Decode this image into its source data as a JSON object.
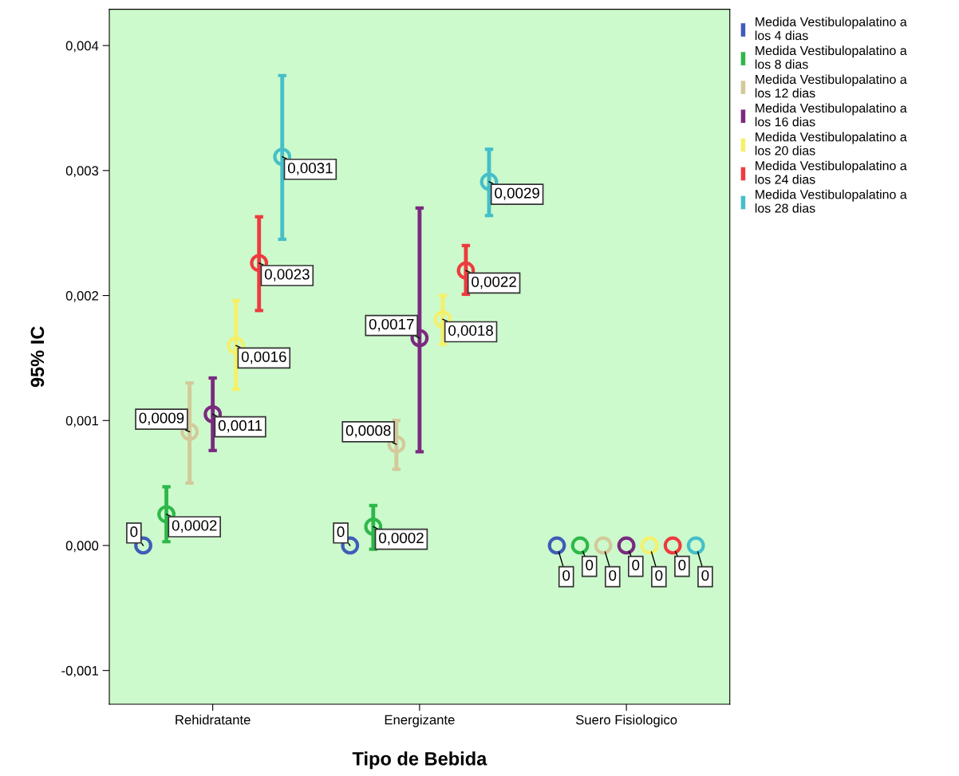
{
  "chart_data": {
    "type": "scatter",
    "xlabel": "Tipo de Bebida",
    "ylabel": "95% IC",
    "categories": [
      "Rehidratante",
      "Energizante",
      "Suero Fisiologico"
    ],
    "ylim": [
      -0.00127,
      0.00429
    ],
    "yticks": [
      {
        "value": -0.001,
        "label": "-0,001"
      },
      {
        "value": 0,
        "label": "0,000"
      },
      {
        "value": 0.001,
        "label": "0,001"
      },
      {
        "value": 0.002,
        "label": "0,002"
      },
      {
        "value": 0.003,
        "label": "0,003"
      },
      {
        "value": 0.004,
        "label": "0,004"
      }
    ],
    "grid": false,
    "legend": "top right",
    "marker": "circle",
    "series": [
      {
        "name": "Medida Vestibulopalatino a los 4 dias",
        "color": "#3f5cb8",
        "values": [
          0,
          0,
          0
        ],
        "errors": [
          null,
          null,
          null
        ],
        "value_labels": [
          "0",
          "0",
          "0"
        ]
      },
      {
        "name": "Medida Vestibulopalatino a los 8 dias",
        "color": "#2eb84a",
        "values": [
          0.00025,
          0.00015,
          0
        ],
        "errors": [
          [
            3e-05,
            0.00047
          ],
          [
            -3e-05,
            0.00032
          ],
          null
        ],
        "value_labels": [
          "0,0002",
          "0,0002",
          "0"
        ]
      },
      {
        "name": "Medida Vestibulopalatino a los 12 dias",
        "color": "#d4c99a",
        "values": [
          0.00091,
          0.00081,
          0
        ],
        "errors": [
          [
            0.0005,
            0.0013
          ],
          [
            0.00061,
            0.001
          ],
          null
        ],
        "value_labels": [
          "0,0009",
          "0,0008",
          "0"
        ]
      },
      {
        "name": "Medida Vestibulopalatino a los 16 dias",
        "color": "#7b2a80",
        "values": [
          0.00105,
          0.00166,
          0
        ],
        "errors": [
          [
            0.00076,
            0.00134
          ],
          [
            0.00075,
            0.0027
          ],
          null
        ],
        "value_labels": [
          "0,0011",
          "0,0017",
          "0"
        ]
      },
      {
        "name": "Medida Vestibulopalatino a los 20 dias",
        "color": "#f5f06a",
        "values": [
          0.0016,
          0.00181,
          0
        ],
        "errors": [
          [
            0.00125,
            0.00196
          ],
          [
            0.00161,
            0.002
          ],
          null
        ],
        "value_labels": [
          "0,0016",
          "0,0018",
          "0"
        ]
      },
      {
        "name": "Medida Vestibulopalatino a los 24 dias",
        "color": "#ee3b3f",
        "values": [
          0.00226,
          0.0022,
          0
        ],
        "errors": [
          [
            0.00188,
            0.00263
          ],
          [
            0.00201,
            0.0024
          ],
          null
        ],
        "value_labels": [
          "0,0023",
          "0,0022",
          "0"
        ]
      },
      {
        "name": "Medida Vestibulopalatino a los 28 dias",
        "color": "#45bfc9",
        "values": [
          0.00311,
          0.00291,
          0
        ],
        "errors": [
          [
            0.00245,
            0.00376
          ],
          [
            0.00264,
            0.00317
          ],
          null
        ],
        "value_labels": [
          "0,0031",
          "0,0029",
          "0"
        ]
      }
    ]
  }
}
